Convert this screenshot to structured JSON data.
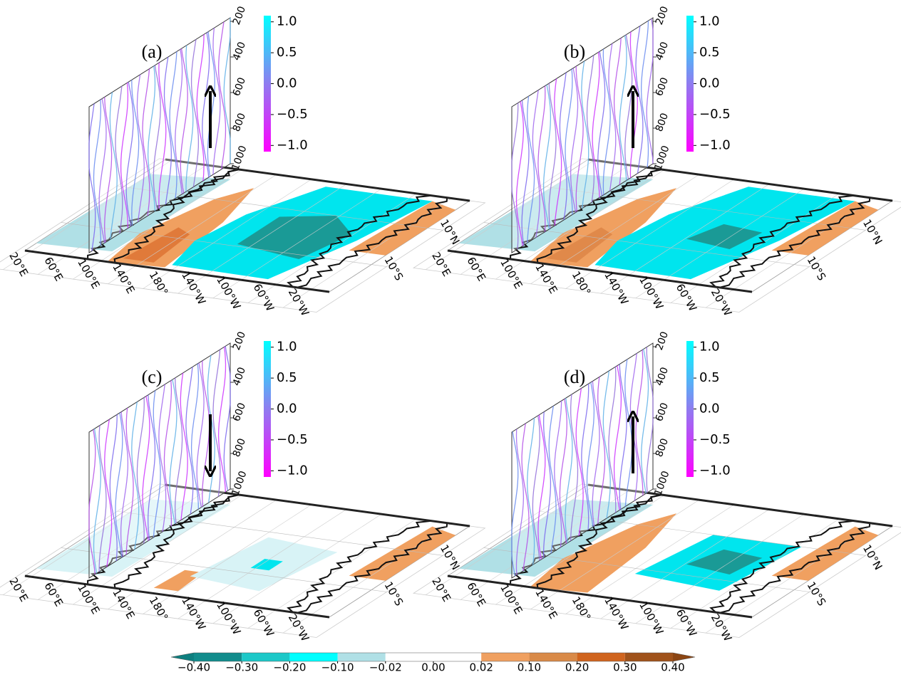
{
  "panels": [
    {
      "label": "(a)"
    },
    {
      "label": "(b)"
    },
    {
      "label": "(c)"
    },
    {
      "label": "(d)"
    }
  ],
  "map_axes": {
    "lon_ticks": [
      "20°E",
      "60°E",
      "100°E",
      "140°E",
      "180°",
      "140°W",
      "100°W",
      "60°W",
      "20°W"
    ],
    "lat_ticks": [
      "10°S",
      "10°N"
    ]
  },
  "pressure_axis": {
    "lim": [
      200,
      1000
    ],
    "ticks": [
      200,
      400,
      600,
      800,
      1000
    ]
  },
  "wind_colorbar": {
    "lim": [
      -1.1,
      1.1
    ],
    "colors": [
      "#ff00ff",
      "#8f7cf0",
      "#00ffff"
    ],
    "ticks": [
      {
        "value": 1,
        "label": "1.0"
      },
      {
        "value": 0.5,
        "label": "0.5"
      },
      {
        "value": 0,
        "label": "0.0"
      },
      {
        "value": -0.5,
        "label": "−0.5"
      },
      {
        "value": -1,
        "label": "−1.0"
      }
    ]
  },
  "anomaly_colorbar": {
    "extend_colors": [
      "#0e7f7f",
      "#8b4513"
    ],
    "colors": [
      "#128c8c",
      "#1cc8c8",
      "#00ffff",
      "#b0e0e6",
      "#ffffff",
      "#ffffff",
      "#f0a060",
      "#d98a48",
      "#d0641e",
      "#a0521a"
    ],
    "ticks": [
      {
        "value": -0.4,
        "label": "−0.40"
      },
      {
        "value": -0.3,
        "label": "−0.30"
      },
      {
        "value": -0.2,
        "label": "−0.20"
      },
      {
        "value": -0.1,
        "label": "−0.10"
      },
      {
        "value": -0.02,
        "label": "−0.02"
      },
      {
        "value": 0,
        "label": "0.00"
      },
      {
        "value": 0.02,
        "label": "0.02"
      },
      {
        "value": 0.1,
        "label": "0.10"
      },
      {
        "value": 0.2,
        "label": "0.20"
      },
      {
        "value": 0.3,
        "label": "0.30"
      },
      {
        "value": 0.4,
        "label": "0.40"
      }
    ]
  }
}
